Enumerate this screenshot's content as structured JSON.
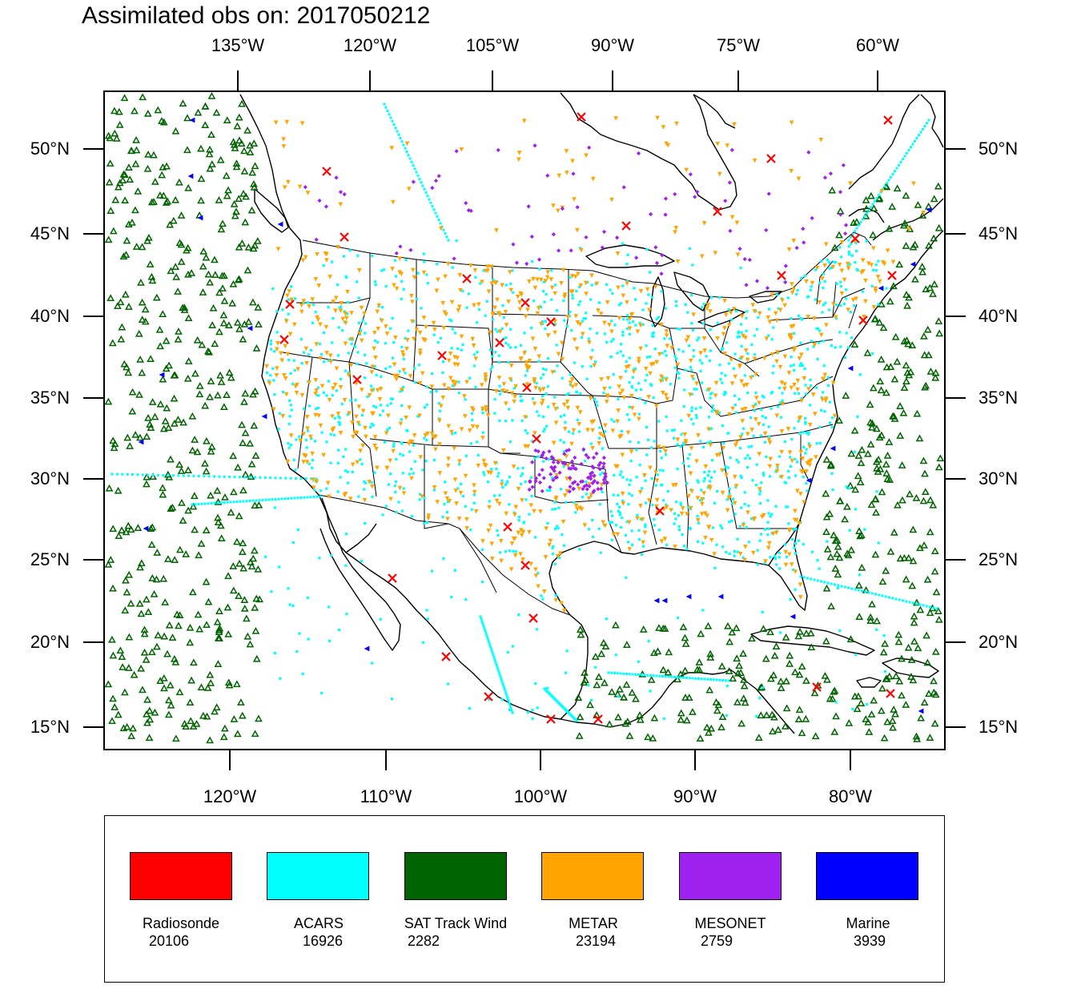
{
  "title": "Assimilated obs on: 2017050212",
  "axes": {
    "top_lon_labels": [
      "135°W",
      "120°W",
      "105°W",
      "90°W",
      "75°W",
      "60°W"
    ],
    "bottom_lon_labels": [
      "120°W",
      "110°W",
      "100°W",
      "90°W",
      "80°W"
    ],
    "lat_labels": [
      "50°N",
      "45°N",
      "40°N",
      "35°N",
      "30°N",
      "25°N",
      "20°N",
      "15°N"
    ]
  },
  "legend": [
    {
      "name": "Radiosonde",
      "count": "20106",
      "color": "#ff0000"
    },
    {
      "name": "ACARS",
      "count": "16926",
      "color": "#00ffff"
    },
    {
      "name": "SAT Track Wind",
      "count": "2282",
      "color": "#006400"
    },
    {
      "name": "METAR",
      "count": "23194",
      "color": "#ffa500"
    },
    {
      "name": "MESONET",
      "count": "2759",
      "color": "#a020f0"
    },
    {
      "name": "Marine",
      "count": "3939",
      "color": "#0000ff"
    }
  ],
  "map": {
    "projection": "Lambert Conformal",
    "lon_range": [
      -128,
      -74
    ],
    "lat_range": [
      14,
      53
    ],
    "marker_shapes": {
      "Radiosonde": "x-mark",
      "ACARS": "dot",
      "SAT Track Wind": "open-triangle",
      "METAR": "down-triangle",
      "MESONET": "diamond",
      "Marine": "left-triangle"
    }
  }
}
